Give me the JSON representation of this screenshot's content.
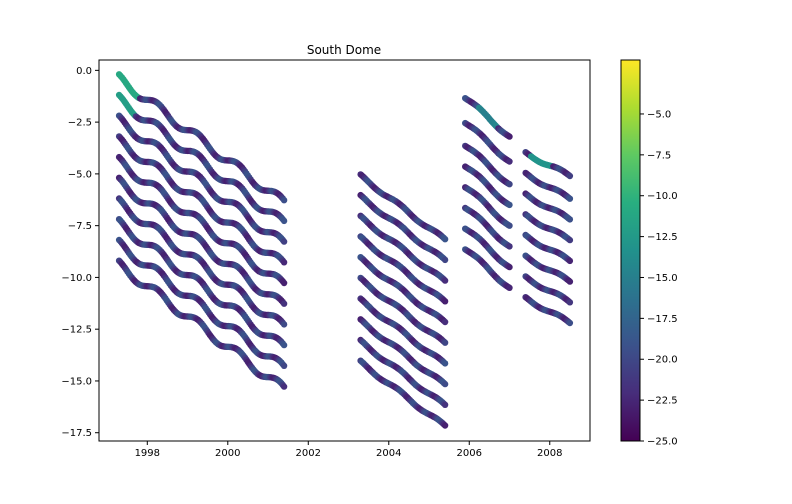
{
  "chart_data": {
    "type": "scatter",
    "title": "South Dome",
    "xlabel": "",
    "ylabel": "",
    "xlim": [
      1996.8,
      2009.0
    ],
    "ylim": [
      -17.9,
      0.5
    ],
    "xticks": [
      1998,
      2000,
      2002,
      2004,
      2006,
      2008
    ],
    "xtick_labels": [
      "1998",
      "2000",
      "2002",
      "2004",
      "2006",
      "2008"
    ],
    "yticks": [
      0.0,
      -2.5,
      -5.0,
      -7.5,
      -10.0,
      -12.5,
      -15.0,
      -17.5
    ],
    "ytick_labels": [
      "0.0",
      "−2.5",
      "−5.0",
      "−7.5",
      "−10.0",
      "−12.5",
      "−15.0",
      "−17.5"
    ],
    "grid": false,
    "colorbar": {
      "colormap": "viridis",
      "range": [
        -25.0,
        -1.7
      ],
      "ticks": [
        -5.0,
        -7.5,
        -10.0,
        -12.5,
        -15.0,
        -17.5,
        -20.0,
        -22.5,
        -25.0
      ],
      "tick_labels": [
        "−5.0",
        "−7.5",
        "−10.0",
        "−12.5",
        "−15.0",
        "−17.5",
        "−20.0",
        "−22.5",
        "−25.0"
      ]
    },
    "series": [
      {
        "x_start": 1997.3,
        "x_end": 2001.4,
        "y_start": -0.4,
        "y_end": -6.4,
        "color_value": -21
      },
      {
        "x_start": 1997.3,
        "x_end": 2001.4,
        "y_start": -1.4,
        "y_end": -7.4,
        "color_value": -21
      },
      {
        "x_start": 1997.3,
        "x_end": 2001.4,
        "y_start": -2.4,
        "y_end": -8.4,
        "color_value": -21
      },
      {
        "x_start": 1997.3,
        "x_end": 2001.4,
        "y_start": -3.4,
        "y_end": -9.4,
        "color_value": -21
      },
      {
        "x_start": 1997.3,
        "x_end": 2001.4,
        "y_start": -4.4,
        "y_end": -10.4,
        "color_value": -21
      },
      {
        "x_start": 1997.3,
        "x_end": 2001.4,
        "y_start": -5.4,
        "y_end": -11.4,
        "color_value": -21
      },
      {
        "x_start": 1997.3,
        "x_end": 2001.4,
        "y_start": -6.4,
        "y_end": -12.4,
        "color_value": -21
      },
      {
        "x_start": 1997.3,
        "x_end": 2001.4,
        "y_start": -7.4,
        "y_end": -13.4,
        "color_value": -21
      },
      {
        "x_start": 1997.3,
        "x_end": 2001.4,
        "y_start": -8.4,
        "y_end": -14.4,
        "color_value": -21
      },
      {
        "x_start": 1997.3,
        "x_end": 2001.4,
        "y_start": -9.4,
        "y_end": -15.4,
        "color_value": -21
      },
      {
        "x_start": 2003.3,
        "x_end": 2005.4,
        "y_start": -5.1,
        "y_end": -8.2,
        "color_value": -21
      },
      {
        "x_start": 2003.3,
        "x_end": 2005.4,
        "y_start": -6.1,
        "y_end": -9.2,
        "color_value": -21
      },
      {
        "x_start": 2003.3,
        "x_end": 2005.4,
        "y_start": -7.1,
        "y_end": -10.2,
        "color_value": -21
      },
      {
        "x_start": 2003.3,
        "x_end": 2005.4,
        "y_start": -8.1,
        "y_end": -11.2,
        "color_value": -21
      },
      {
        "x_start": 2003.3,
        "x_end": 2005.4,
        "y_start": -9.1,
        "y_end": -12.2,
        "color_value": -21
      },
      {
        "x_start": 2003.3,
        "x_end": 2005.4,
        "y_start": -10.1,
        "y_end": -13.2,
        "color_value": -21
      },
      {
        "x_start": 2003.3,
        "x_end": 2005.4,
        "y_start": -11.1,
        "y_end": -14.2,
        "color_value": -21
      },
      {
        "x_start": 2003.3,
        "x_end": 2005.4,
        "y_start": -12.1,
        "y_end": -15.2,
        "color_value": -21
      },
      {
        "x_start": 2003.3,
        "x_end": 2005.4,
        "y_start": -13.1,
        "y_end": -16.2,
        "color_value": -21
      },
      {
        "x_start": 2003.3,
        "x_end": 2005.4,
        "y_start": -14.1,
        "y_end": -17.2,
        "color_value": -21
      },
      {
        "x_start": 2005.9,
        "x_end": 2007.0,
        "y_start": -1.3,
        "y_end": -3.2,
        "color_value": -21
      },
      {
        "x_start": 2005.9,
        "x_end": 2007.0,
        "y_start": -2.5,
        "y_end": -4.4,
        "color_value": -21
      },
      {
        "x_start": 2005.9,
        "x_end": 2007.0,
        "y_start": -3.6,
        "y_end": -5.5,
        "color_value": -21
      },
      {
        "x_start": 2005.9,
        "x_end": 2007.0,
        "y_start": -4.6,
        "y_end": -6.5,
        "color_value": -21
      },
      {
        "x_start": 2005.9,
        "x_end": 2007.0,
        "y_start": -5.6,
        "y_end": -7.5,
        "color_value": -21
      },
      {
        "x_start": 2005.9,
        "x_end": 2007.0,
        "y_start": -6.6,
        "y_end": -8.5,
        "color_value": -21
      },
      {
        "x_start": 2005.9,
        "x_end": 2007.0,
        "y_start": -7.6,
        "y_end": -9.5,
        "color_value": -21
      },
      {
        "x_start": 2005.9,
        "x_end": 2007.0,
        "y_start": -8.6,
        "y_end": -10.5,
        "color_value": -21
      },
      {
        "x_start": 2007.4,
        "x_end": 2008.5,
        "y_start": -4.0,
        "y_end": -5.1,
        "color_value": -21
      },
      {
        "x_start": 2007.4,
        "x_end": 2008.5,
        "y_start": -5.0,
        "y_end": -6.2,
        "color_value": -21
      },
      {
        "x_start": 2007.4,
        "x_end": 2008.5,
        "y_start": -6.0,
        "y_end": -7.2,
        "color_value": -21
      },
      {
        "x_start": 2007.4,
        "x_end": 2008.5,
        "y_start": -7.0,
        "y_end": -8.2,
        "color_value": -21
      },
      {
        "x_start": 2007.4,
        "x_end": 2008.5,
        "y_start": -8.0,
        "y_end": -9.2,
        "color_value": -21
      },
      {
        "x_start": 2007.4,
        "x_end": 2008.5,
        "y_start": -9.0,
        "y_end": -10.2,
        "color_value": -21
      },
      {
        "x_start": 2007.4,
        "x_end": 2008.5,
        "y_start": -10.0,
        "y_end": -11.2,
        "color_value": -21
      },
      {
        "x_start": 2007.4,
        "x_end": 2008.5,
        "y_start": -11.0,
        "y_end": -12.2,
        "color_value": -21
      }
    ]
  }
}
